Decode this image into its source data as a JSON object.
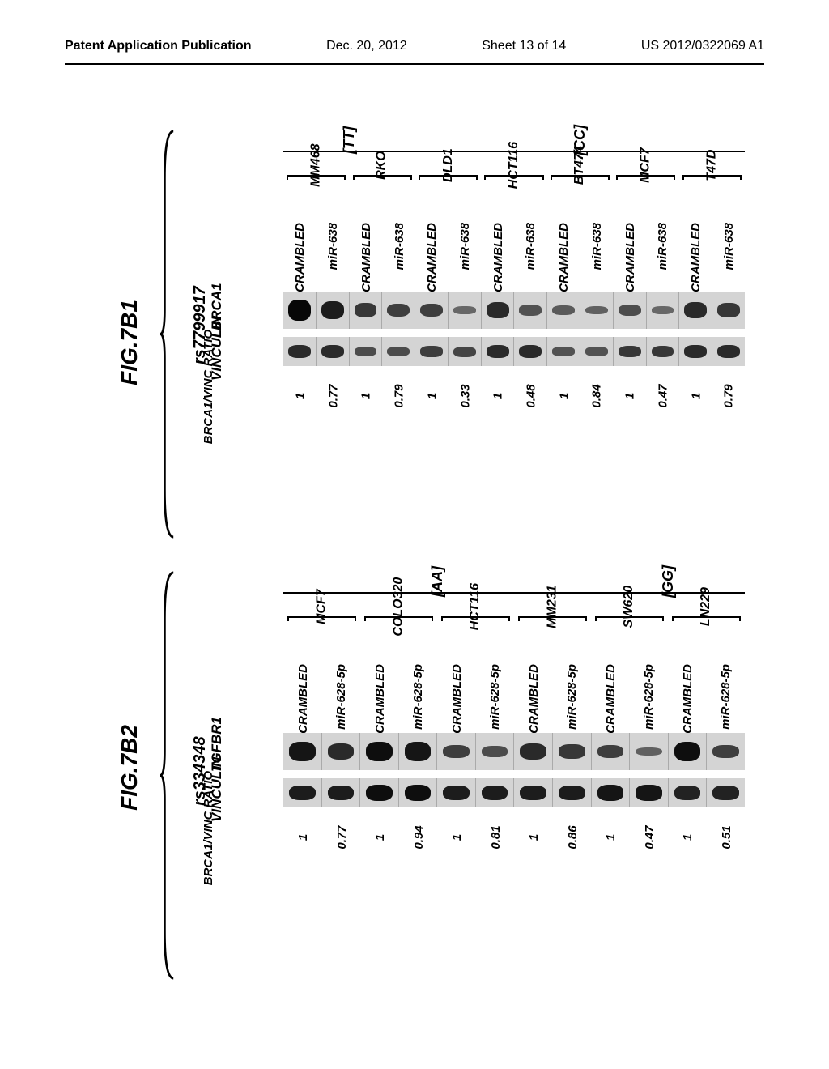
{
  "header": {
    "publication": "Patent Application Publication",
    "date": "Dec. 20, 2012",
    "sheet": "Sheet 13 of 14",
    "docnum": "US 2012/0322069 A1"
  },
  "fig_b1": {
    "label": "FIG.7B1",
    "snp": "rs7799917",
    "genotypes": [
      {
        "label": "[TT]",
        "cells": [
          "MM468",
          "RKO"
        ]
      },
      {
        "label": "[CC]",
        "cells": [
          "DLD1",
          "HCT116",
          "BT474",
          "MCF7",
          "T47D"
        ]
      }
    ],
    "treatments": [
      "SCRAMBLED",
      "miR-638"
    ],
    "protein_rows": [
      "BRCA1",
      "VINCULIN"
    ],
    "ratio_label": "BRCA1/VINC\nRATIO",
    "bands_brca1": [
      0.95,
      0.8,
      0.6,
      0.55,
      0.55,
      0.25,
      0.7,
      0.4,
      0.35,
      0.3,
      0.45,
      0.25,
      0.7,
      0.6
    ],
    "bands_vinc": [
      0.7,
      0.7,
      0.45,
      0.45,
      0.55,
      0.5,
      0.7,
      0.7,
      0.4,
      0.4,
      0.6,
      0.6,
      0.7,
      0.7
    ],
    "ratios": [
      "1",
      "0.77",
      "1",
      "0.79",
      "1",
      "0.33",
      "1",
      "0.48",
      "1",
      "0.84",
      "1",
      "0.47",
      "1",
      "0.79"
    ]
  },
  "fig_b2": {
    "label": "FIG.7B2",
    "snp": "rs334348",
    "genotypes": [
      {
        "label": "[AA]",
        "cells": [
          "MCF7",
          "COLO320",
          "HCT116",
          "MM231"
        ]
      },
      {
        "label": "[GG]",
        "cells": [
          "SW620",
          "LN229"
        ]
      }
    ],
    "treatments": [
      "SCRAMBLED",
      "miR-628-5p"
    ],
    "protein_rows": [
      "TGFBR1",
      "VINCULIN"
    ],
    "ratio_label": "BRCA1/VINC\nRATIO",
    "bands_tgfbr1": [
      0.85,
      0.7,
      0.9,
      0.85,
      0.55,
      0.45,
      0.7,
      0.6,
      0.55,
      0.3,
      0.9,
      0.55
    ],
    "bands_vinc": [
      0.8,
      0.8,
      0.9,
      0.9,
      0.8,
      0.8,
      0.8,
      0.8,
      0.85,
      0.85,
      0.75,
      0.75
    ],
    "ratios": [
      "1",
      "0.77",
      "1",
      "0.94",
      "1",
      "0.81",
      "1",
      "0.86",
      "1",
      "0.47",
      "1",
      "0.51"
    ]
  },
  "style": {
    "band_color": "#000000",
    "strip_bg": "#d4d4d4",
    "strip_height_main": 46,
    "strip_height_vinc": 36
  }
}
